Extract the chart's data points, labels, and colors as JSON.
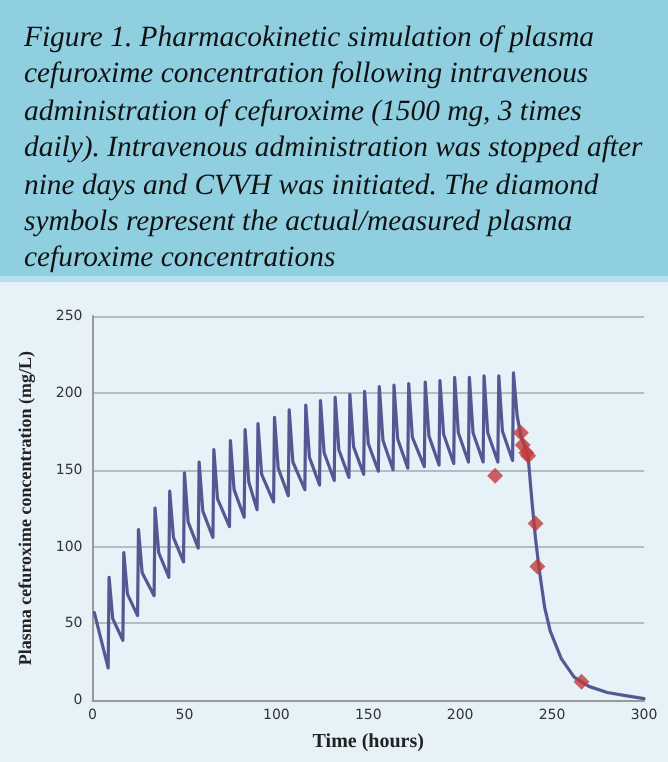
{
  "chart_data": {
    "type": "line",
    "title": "Figure 1. Pharmacokinetic simulation of plasma cefuroxime concentration following intravenous administration of cefuroxime (1500 mg, 3 times daily). Intravenous administration was stopped after nine days and CVVH was initiated. The diamond symbols represent the actual/measured plasma cefuroxime concentrations",
    "xlabel": "Time (hours)",
    "ylabel": "Plasma cefuroxime concentration (mg/L)",
    "xlim": [
      0,
      300
    ],
    "xticks": [
      0,
      50,
      100,
      150,
      200,
      250,
      300
    ],
    "ylim": [
      0,
      250
    ],
    "yticks": [
      0,
      50,
      100,
      150,
      200,
      250
    ],
    "grid": "y",
    "series": [
      {
        "color": "#535893",
        "marker": "none",
        "line_style": "solid",
        "x": [
          1,
          8.5,
          9,
          11,
          16.5,
          17,
          19,
          24.5,
          25,
          27,
          33.5,
          34,
          36,
          41.5,
          42,
          44,
          49.5,
          50,
          52,
          57.5,
          58,
          60,
          65.5,
          66,
          68,
          74.5,
          75,
          77,
          82.5,
          83,
          85,
          89.5,
          90,
          92,
          98.5,
          99,
          101,
          106.5,
          107,
          109,
          115.5,
          116,
          118,
          123.5,
          124,
          126,
          131.5,
          132,
          134,
          139.5,
          140,
          142,
          147.5,
          148,
          150,
          155.5,
          156,
          158,
          163.5,
          164,
          166,
          171.5,
          172,
          174,
          180.5,
          181,
          183,
          188.5,
          189,
          191,
          196.5,
          197,
          199,
          204.5,
          205,
          207,
          212.5,
          213,
          215,
          220.5,
          221,
          223,
          228.5,
          229,
          231,
          233,
          235,
          237,
          239,
          241,
          243,
          246,
          249,
          255,
          262,
          270,
          280,
          290,
          300
        ],
        "values": [
          57,
          21,
          80,
          53,
          39,
          96,
          69,
          55,
          111,
          83,
          68,
          125,
          96,
          80,
          136,
          106,
          90,
          148,
          116,
          99,
          155,
          123,
          106,
          163,
          131,
          113,
          169,
          137,
          119,
          176,
          142,
          124,
          180,
          147,
          129,
          184,
          151,
          133,
          189,
          155,
          137,
          192,
          158,
          140,
          195,
          161,
          143,
          197,
          163,
          145,
          199,
          165,
          147,
          201,
          167,
          149,
          204,
          169,
          150,
          205,
          170,
          151,
          206,
          171,
          152,
          207,
          172,
          153,
          208,
          173,
          154,
          210,
          174,
          155,
          210,
          174,
          155,
          211,
          174,
          155,
          211,
          175,
          156,
          213,
          185,
          172,
          166,
          158,
          130,
          105,
          85,
          60,
          45,
          27,
          15,
          9,
          5,
          3,
          1
        ]
      },
      {
        "type": "scatter",
        "color": "#c0393b",
        "marker": "diamond",
        "x": [
          219,
          233,
          234,
          236,
          237,
          241,
          242,
          266
        ],
        "values": [
          146,
          174,
          166,
          161,
          159,
          115,
          87,
          12
        ]
      }
    ]
  }
}
